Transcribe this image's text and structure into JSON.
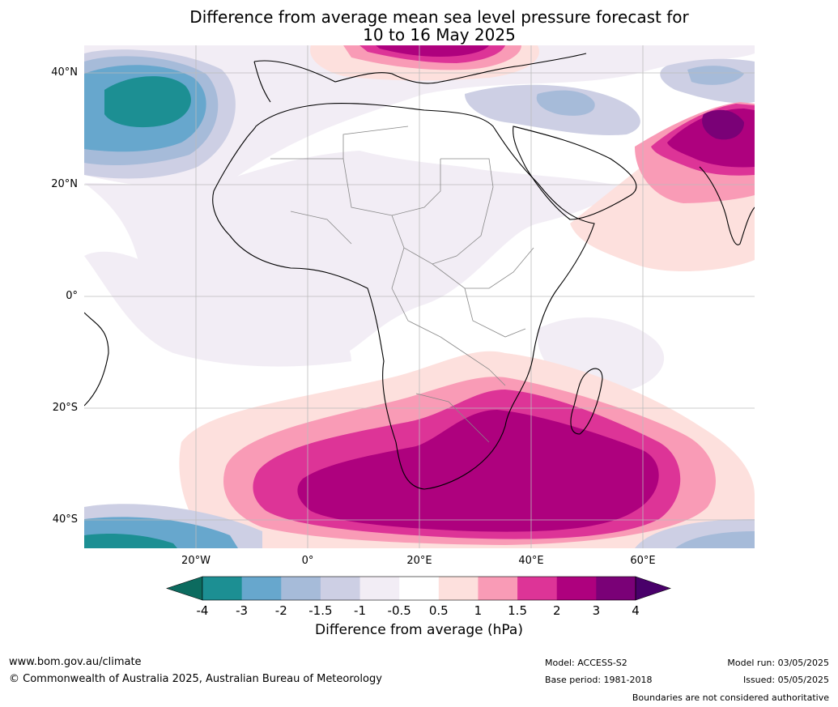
{
  "title": {
    "line1": "Difference from average mean sea level pressure forecast for",
    "line2": "10 to 16 May 2025"
  },
  "map": {
    "lat_labels": [
      "40°N",
      "20°N",
      "0°",
      "20°S",
      "40°S"
    ],
    "lon_labels": [
      "20°W",
      "0°",
      "20°E",
      "40°E",
      "60°E"
    ],
    "extent": {
      "lon": [
        -40,
        80
      ],
      "lat": [
        -45,
        45
      ]
    }
  },
  "colorbar": {
    "label": "Difference from average (hPa)",
    "ticks": [
      "-4",
      "-3",
      "-2",
      "-1.5",
      "-1",
      "-0.5",
      "0.5",
      "1",
      "1.5",
      "2",
      "3",
      "4"
    ],
    "colors": {
      "lt_-4": "#0c6b5f",
      "-4_-3": "#1c8f93",
      "-3_-2": "#67a7cd",
      "-2_-1.5": "#a6bbd9",
      "-1.5_-1": "#cdcfe4",
      "-1_-0.5": "#f2edf5",
      "-0.5_0.5": "#ffffff",
      "0.5_1": "#fde0dd",
      "1_1.5": "#f99bb6",
      "1.5_2": "#dd3497",
      "2_3": "#ae017e",
      "3_4": "#7a0177",
      "gt_4": "#49006a"
    }
  },
  "footer": {
    "website": "www.bom.gov.au/climate",
    "copyright": "© Commonwealth of Australia 2025, Australian Bureau of Meteorology",
    "model": "Model: ACCESS-S2",
    "base_period": "Base period: 1981-2018",
    "model_run": "Model run: 03/05/2025",
    "issued": "Issued: 05/05/2025",
    "boundaries": "Boundaries are not considered authoritative"
  }
}
